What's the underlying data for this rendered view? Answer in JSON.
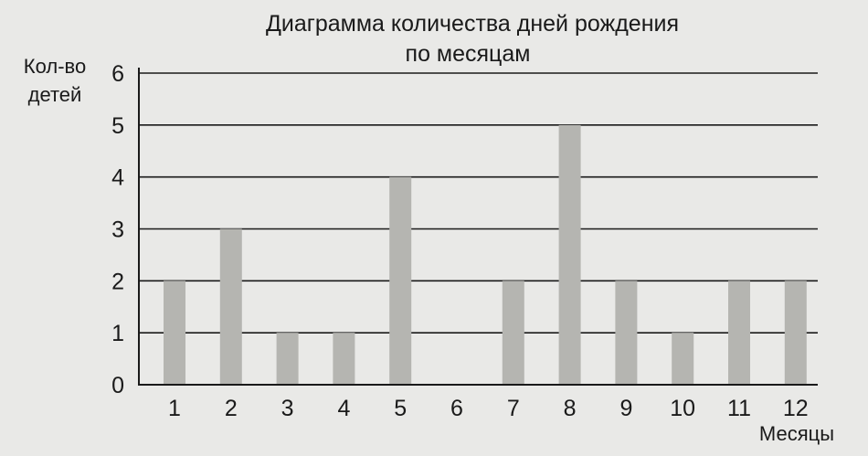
{
  "chart_data": {
    "type": "bar",
    "title": "Диаграмма количества дней рождения",
    "subtitle": "по месяцам",
    "ylabel": "Кол-во детей",
    "ylabel_lines": [
      "Кол-во",
      "детей"
    ],
    "xlabel": "Месяцы",
    "categories": [
      "1",
      "2",
      "3",
      "4",
      "5",
      "6",
      "7",
      "8",
      "9",
      "10",
      "11",
      "12"
    ],
    "values": [
      2,
      3,
      1,
      1,
      4,
      0,
      2,
      5,
      2,
      1,
      2,
      2
    ],
    "yticks": [
      "0",
      "1",
      "2",
      "3",
      "4",
      "5",
      "6"
    ],
    "ylim": [
      0,
      6
    ],
    "grid": true,
    "colors": {
      "bar": "#b5b5b1",
      "ink": "#1a1a1a",
      "background": "#e9e9e7"
    }
  }
}
